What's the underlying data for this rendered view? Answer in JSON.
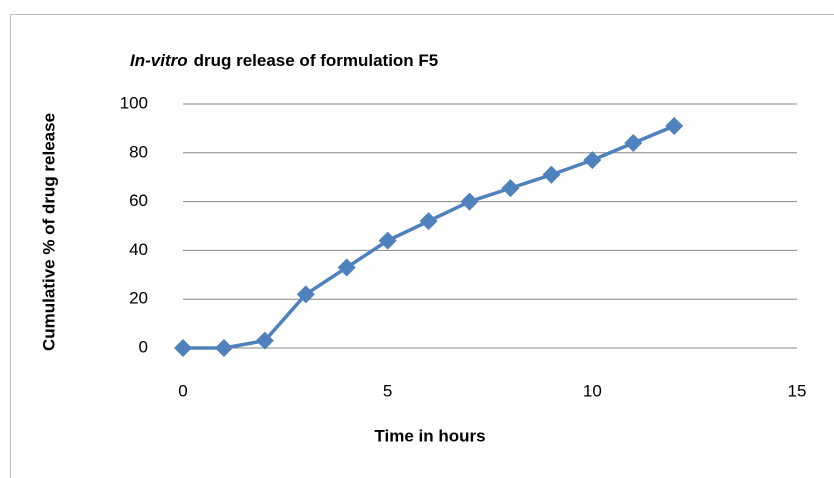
{
  "chart_data": {
    "type": "line",
    "title": [
      "In-vitro",
      "drug release of formulation F5"
    ],
    "xlabel": "Time in hours",
    "ylabel": "Cumulative % of drug release",
    "x": [
      0,
      1,
      2,
      3,
      4,
      5,
      6,
      7,
      8,
      9,
      10,
      11,
      12
    ],
    "series": [
      {
        "name": "F5",
        "color": "#4f81bd",
        "values": [
          0,
          0,
          3,
          22,
          33,
          44,
          52,
          60,
          65.5,
          71,
          77,
          84,
          91
        ]
      }
    ],
    "xlim": [
      0,
      15
    ],
    "xticks": [
      0,
      5,
      10,
      15
    ],
    "ylim": [
      0,
      100
    ],
    "yticks": [
      0,
      20,
      40,
      60,
      80,
      100
    ],
    "grid": true
  }
}
